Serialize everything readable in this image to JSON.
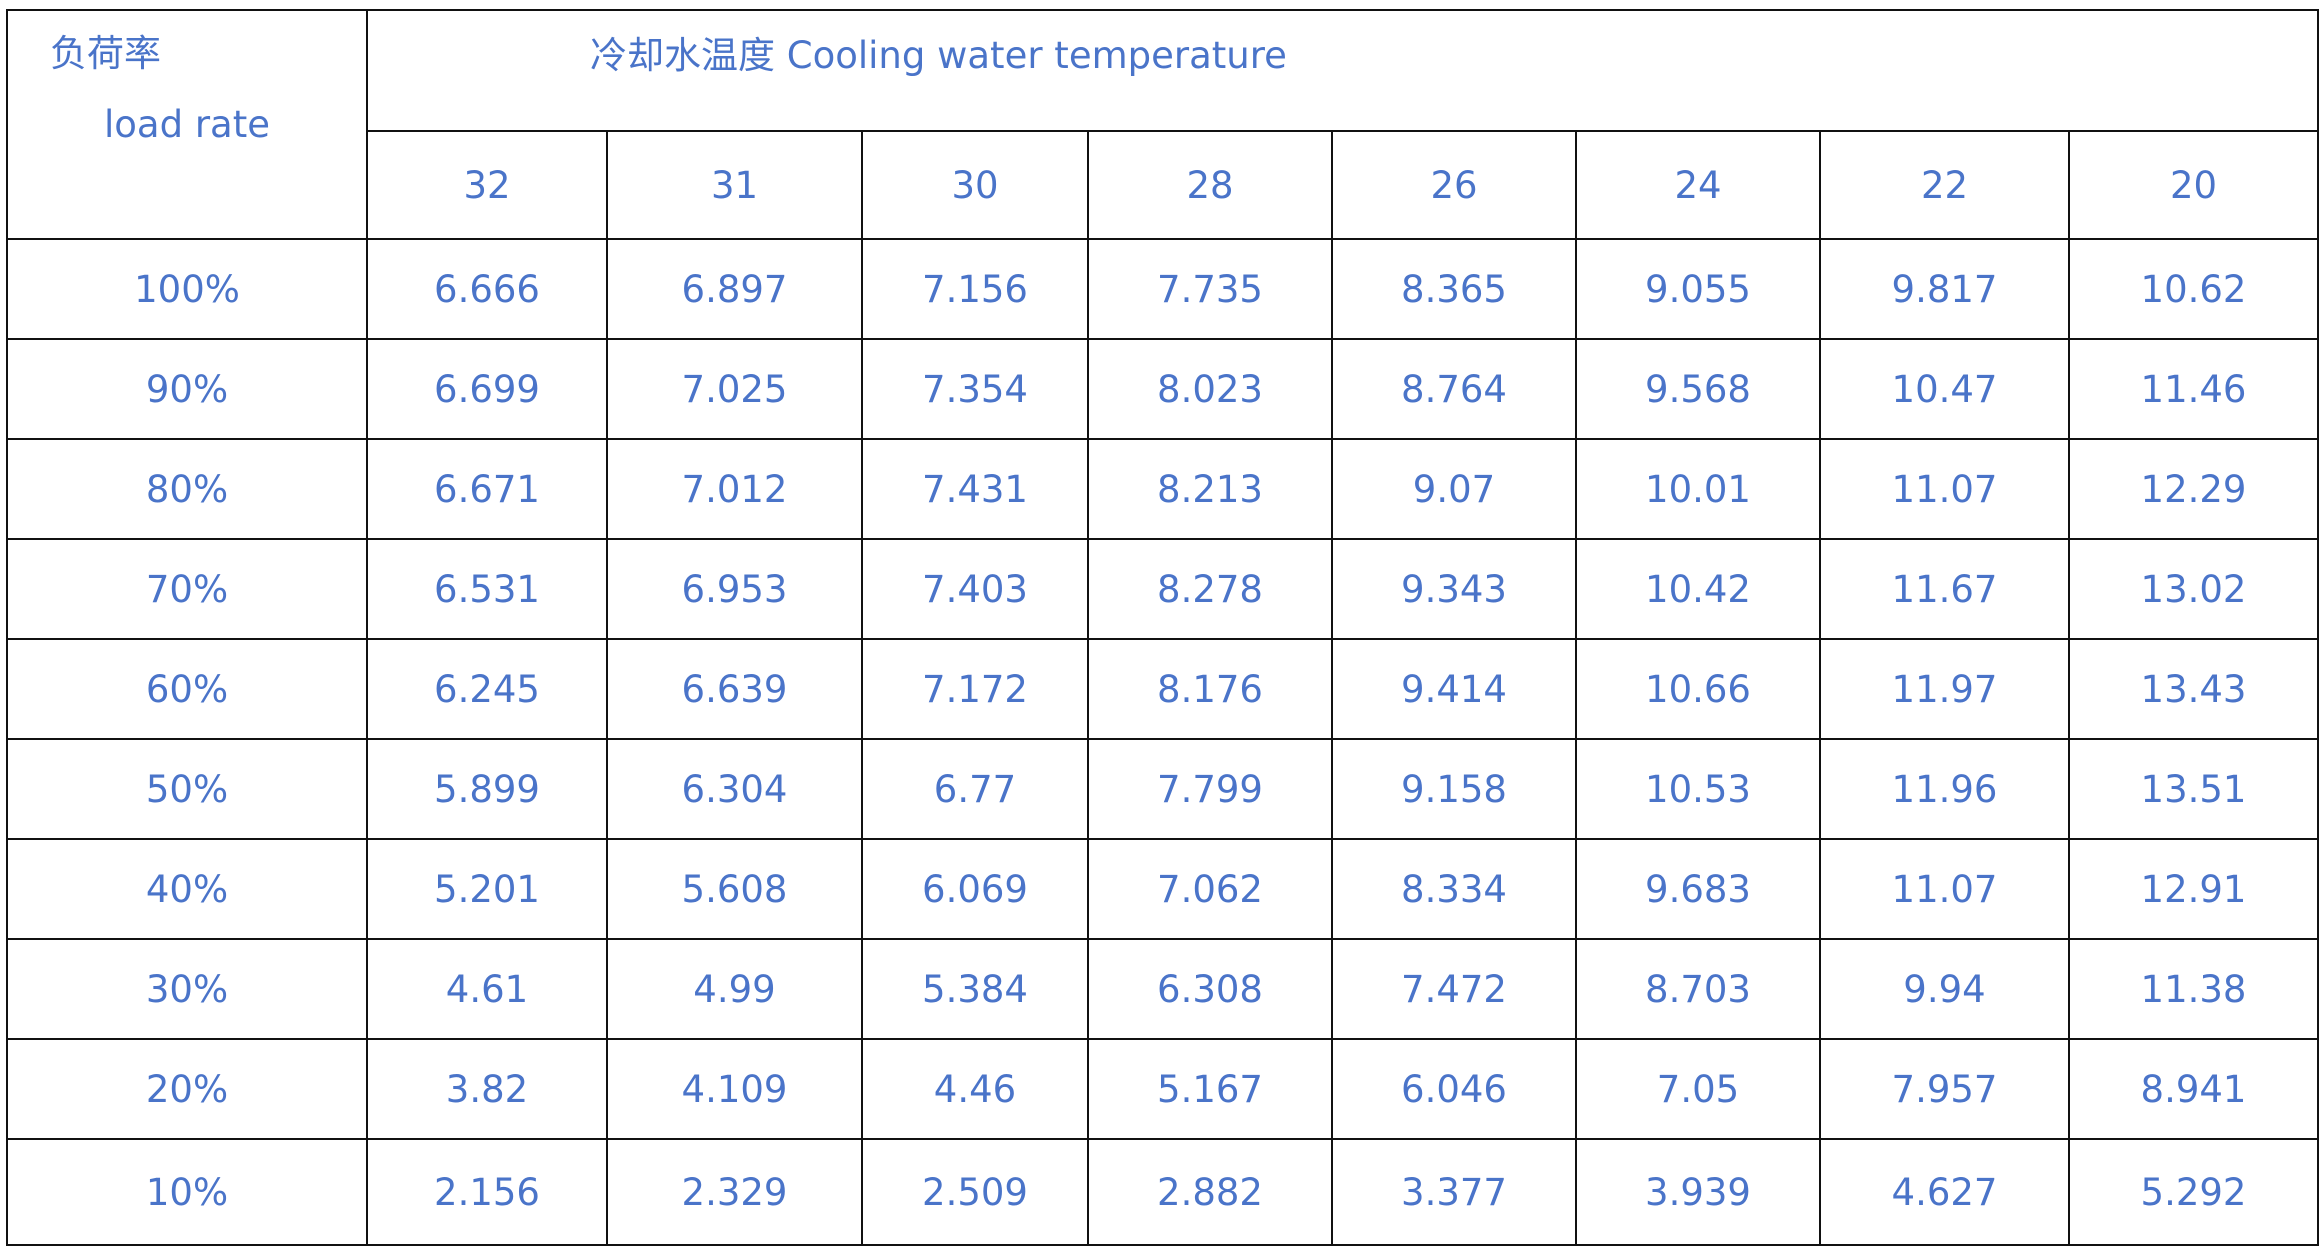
{
  "table": {
    "corner": {
      "zh": "负荷率",
      "en": "load rate"
    },
    "group_title": "冷却水温度 Cooling water temperature",
    "columns": [
      "32",
      "31",
      "30",
      "28",
      "26",
      "24",
      "22",
      "20"
    ],
    "rows": [
      {
        "label": "100%",
        "cells": [
          "6.666",
          "6.897",
          "7.156",
          "7.735",
          "8.365",
          "9.055",
          "9.817",
          "10.62"
        ]
      },
      {
        "label": "90%",
        "cells": [
          "6.699",
          "7.025",
          "7.354",
          "8.023",
          "8.764",
          "9.568",
          "10.47",
          "11.46"
        ]
      },
      {
        "label": "80%",
        "cells": [
          "6.671",
          "7.012",
          "7.431",
          "8.213",
          "9.07",
          "10.01",
          "11.07",
          "12.29"
        ]
      },
      {
        "label": "70%",
        "cells": [
          "6.531",
          "6.953",
          "7.403",
          "8.278",
          "9.343",
          "10.42",
          "11.67",
          "13.02"
        ]
      },
      {
        "label": "60%",
        "cells": [
          "6.245",
          "6.639",
          "7.172",
          "8.176",
          "9.414",
          "10.66",
          "11.97",
          "13.43"
        ]
      },
      {
        "label": "50%",
        "cells": [
          "5.899",
          "6.304",
          "6.77",
          "7.799",
          "9.158",
          "10.53",
          "11.96",
          "13.51"
        ]
      },
      {
        "label": "40%",
        "cells": [
          "5.201",
          "5.608",
          "6.069",
          "7.062",
          "8.334",
          "9.683",
          "11.07",
          "12.91"
        ]
      },
      {
        "label": "30%",
        "cells": [
          "4.61",
          "4.99",
          "5.384",
          "6.308",
          "7.472",
          "8.703",
          "9.94",
          "11.38"
        ]
      },
      {
        "label": "20%",
        "cells": [
          "3.82",
          "4.109",
          "4.46",
          "5.167",
          "6.046",
          "7.05",
          "7.957",
          "8.941"
        ]
      },
      {
        "label": "10%",
        "cells": [
          "2.156",
          "2.329",
          "2.509",
          "2.882",
          "3.377",
          "3.939",
          "4.627",
          "5.292"
        ]
      }
    ]
  }
}
